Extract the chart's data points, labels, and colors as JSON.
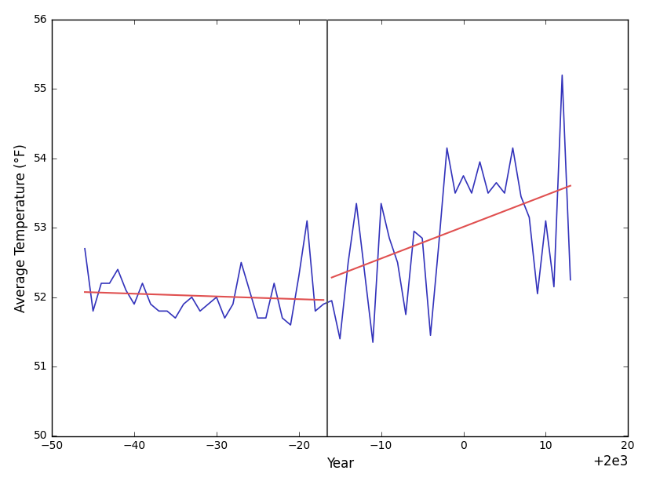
{
  "years": [
    1954,
    1955,
    1956,
    1957,
    1958,
    1959,
    1960,
    1961,
    1962,
    1963,
    1964,
    1965,
    1966,
    1967,
    1968,
    1969,
    1970,
    1971,
    1972,
    1973,
    1974,
    1975,
    1976,
    1977,
    1978,
    1979,
    1980,
    1981,
    1982,
    1983,
    1984,
    1985,
    1986,
    1987,
    1988,
    1989,
    1990,
    1991,
    1992,
    1993,
    1994,
    1995,
    1996,
    1997,
    1998,
    1999,
    2000,
    2001,
    2002,
    2003,
    2004,
    2005,
    2006,
    2007,
    2008,
    2009,
    2010,
    2011,
    2012,
    2013
  ],
  "temperatures": [
    52.7,
    51.8,
    52.2,
    52.2,
    52.4,
    52.1,
    51.9,
    52.2,
    51.9,
    51.8,
    51.8,
    51.7,
    51.9,
    52.0,
    51.8,
    51.9,
    52.0,
    51.7,
    51.9,
    52.5,
    52.1,
    51.7,
    51.7,
    52.2,
    51.7,
    51.6,
    52.3,
    53.1,
    51.8,
    51.9,
    51.95,
    51.4,
    52.5,
    53.35,
    52.35,
    51.35,
    53.35,
    52.85,
    52.5,
    51.75,
    52.95,
    52.85,
    51.45,
    52.75,
    54.15,
    53.5,
    53.75,
    53.5,
    53.95,
    53.5,
    53.65,
    53.5,
    54.15,
    53.45,
    53.15,
    52.05,
    53.1,
    52.15,
    55.2,
    52.25
  ],
  "split_year": 1983.5,
  "trend_color": "#e05050",
  "data_color": "#3333bb",
  "split_line_color": "#555555",
  "xlabel": "Year",
  "ylabel": "Average Temperature (°F)",
  "xlim": [
    1950,
    2020
  ],
  "ylim": [
    50,
    56
  ],
  "xticks": [
    1950,
    1960,
    1970,
    1980,
    1990,
    2000,
    2010,
    2020
  ],
  "yticks": [
    50,
    51,
    52,
    53,
    54,
    55,
    56
  ],
  "figsize": [
    8.27,
    6.18
  ],
  "dpi": 100
}
